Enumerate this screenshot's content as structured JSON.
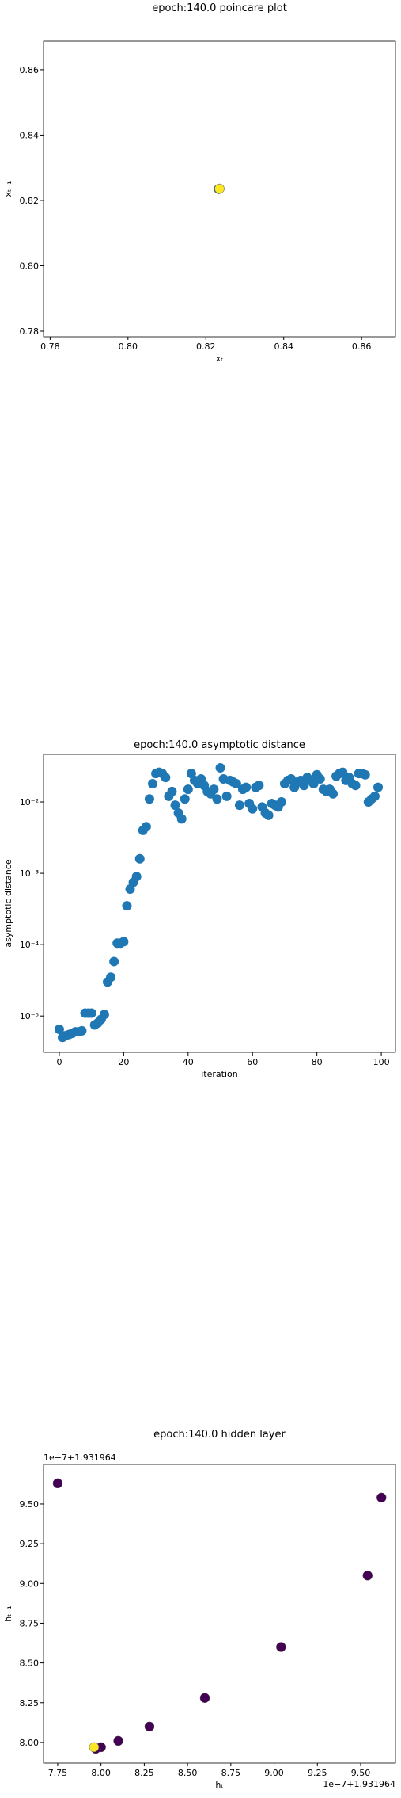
{
  "chart_data": [
    {
      "type": "scatter",
      "title": "epoch:140.0 poincare plot",
      "xlabel": "xₜ",
      "ylabel": "xₜ₋₁",
      "x": [
        0.8235,
        0.8233,
        0.8235
      ],
      "values": [
        0.8236,
        0.8235,
        0.8236
      ],
      "colors": [
        "#440154",
        "#21918c",
        "#fde725"
      ],
      "xlim": [
        0.7783,
        0.8687
      ],
      "ylim": [
        0.7783,
        0.8687
      ],
      "xticks": [
        {
          "value": 0.78,
          "label": "0.78"
        },
        {
          "value": 0.8,
          "label": "0.80"
        },
        {
          "value": 0.82,
          "label": "0.82"
        },
        {
          "value": 0.84,
          "label": "0.84"
        },
        {
          "value": 0.86,
          "label": "0.86"
        }
      ],
      "yticks": [
        {
          "value": 0.78,
          "label": "0.78"
        },
        {
          "value": 0.8,
          "label": "0.80"
        },
        {
          "value": 0.82,
          "label": "0.82"
        },
        {
          "value": 0.84,
          "label": "0.84"
        },
        {
          "value": 0.86,
          "label": "0.86"
        }
      ]
    },
    {
      "type": "scatter",
      "title": "epoch:140.0 asymptotic distance",
      "xlabel": "iteration",
      "ylabel": "asymptotic distance",
      "log_y": true,
      "color": "#1f77b4",
      "x": [
        0,
        1,
        2,
        3,
        4,
        5,
        6,
        7,
        8,
        9,
        10,
        11,
        12,
        13,
        14,
        15,
        16,
        17,
        18,
        19,
        20,
        21,
        22,
        23,
        24,
        25,
        26,
        27,
        28,
        29,
        30,
        31,
        32,
        33,
        34,
        35,
        36,
        37,
        38,
        39,
        40,
        41,
        42,
        43,
        44,
        45,
        46,
        47,
        48,
        49,
        50,
        51,
        52,
        53,
        54,
        55,
        56,
        57,
        58,
        59,
        60,
        61,
        62,
        63,
        64,
        65,
        66,
        67,
        68,
        69,
        70,
        71,
        72,
        73,
        74,
        75,
        76,
        77,
        78,
        79,
        80,
        81,
        82,
        83,
        84,
        85,
        86,
        87,
        88,
        89,
        90,
        91,
        92,
        93,
        94,
        95,
        96,
        97,
        98,
        99
      ],
      "values": [
        6.5e-06,
        5e-06,
        5.3e-06,
        5.5e-06,
        5.7e-06,
        6e-06,
        6e-06,
        6.2e-06,
        1.1e-05,
        1.1e-05,
        1.1e-05,
        7.5e-06,
        8e-06,
        9e-06,
        1.05e-05,
        3e-05,
        3.5e-05,
        5.8e-05,
        0.000105,
        0.000105,
        0.00011,
        0.00035,
        0.0006,
        0.00075,
        0.0009,
        0.0016,
        0.004,
        0.0045,
        0.011,
        0.018,
        0.025,
        0.026,
        0.025,
        0.022,
        0.012,
        0.014,
        0.009,
        0.007,
        0.0058,
        0.011,
        0.015,
        0.025,
        0.02,
        0.018,
        0.021,
        0.017,
        0.014,
        0.013,
        0.015,
        0.011,
        0.03,
        0.021,
        0.012,
        0.02,
        0.019,
        0.018,
        0.009,
        0.015,
        0.016,
        0.0095,
        0.008,
        0.016,
        0.017,
        0.0085,
        0.007,
        0.0065,
        0.0095,
        0.009,
        0.0085,
        0.01,
        0.018,
        0.02,
        0.021,
        0.016,
        0.019,
        0.02,
        0.017,
        0.022,
        0.02,
        0.018,
        0.024,
        0.021,
        0.015,
        0.014,
        0.015,
        0.013,
        0.023,
        0.025,
        0.026,
        0.02,
        0.022,
        0.018,
        0.017,
        0.025,
        0.025,
        0.024,
        0.01,
        0.011,
        0.012,
        0.016
      ],
      "xlim": [
        -4.9,
        104.4
      ],
      "ylim": [
        3.1e-06,
        0.0464
      ],
      "xticks": [
        0,
        20,
        40,
        60,
        80,
        100
      ],
      "yticks": [
        {
          "value": 1e-05,
          "label": "10⁻⁵"
        },
        {
          "value": 0.0001,
          "label": "10⁻⁴"
        },
        {
          "value": 0.001,
          "label": "10⁻³"
        },
        {
          "value": 0.01,
          "label": "10⁻²"
        }
      ]
    },
    {
      "type": "scatter",
      "title": "epoch:140.0 hidden layer",
      "xlabel": "hₜ",
      "ylabel": "hₜ₋₁",
      "x_offset": "1e−7+1.931964",
      "y_offset": "1e−7+1.931964",
      "x": [
        7.75,
        9.62,
        9.54,
        9.04,
        8.6,
        8.28,
        8.1,
        8.0,
        7.97,
        7.96
      ],
      "values": [
        9.63,
        9.54,
        9.05,
        8.6,
        8.28,
        8.1,
        8.01,
        7.97,
        7.96,
        7.97
      ],
      "colors": [
        "#440154",
        "#440154",
        "#440154",
        "#440154",
        "#440154",
        "#440154",
        "#440154",
        "#440154",
        "#440154",
        "#fde725"
      ],
      "xlim": [
        7.668,
        9.701
      ],
      "ylim": [
        7.87,
        9.749
      ],
      "xticks": [
        7.75,
        {
          "value": 8.0,
          "label": "8.00"
        },
        8.25,
        {
          "value": 8.5,
          "label": "8.50"
        },
        8.75,
        {
          "value": 9.0,
          "label": "9.00"
        },
        9.25,
        {
          "value": 9.5,
          "label": "9.50"
        }
      ],
      "yticks": [
        {
          "value": 8.0,
          "label": "8.00"
        },
        8.25,
        {
          "value": 8.5,
          "label": "8.50"
        },
        8.75,
        {
          "value": 9.0,
          "label": "9.00"
        },
        9.25,
        {
          "value": 9.5,
          "label": "9.50"
        }
      ]
    }
  ]
}
